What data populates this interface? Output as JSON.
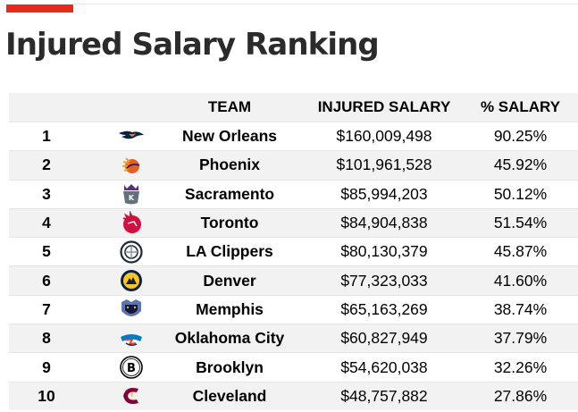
{
  "title": "Injured Salary Ranking",
  "colors": {
    "accent": "#e8291c",
    "stripe": "#f2f2f2"
  },
  "columns": {
    "rank": "",
    "logo": "",
    "team": "TEAM",
    "salary": "INJURED SALARY",
    "pct": "% SALARY"
  },
  "rows": [
    {
      "rank": "1",
      "team": "New Orleans",
      "salary": "$160,009,498",
      "pct": "90.25%",
      "logo": "pelicans-logo-icon"
    },
    {
      "rank": "2",
      "team": "Phoenix",
      "salary": "$101,961,528",
      "pct": "45.92%",
      "logo": "suns-logo-icon"
    },
    {
      "rank": "3",
      "team": "Sacramento",
      "salary": "$85,994,203",
      "pct": "50.12%",
      "logo": "kings-logo-icon"
    },
    {
      "rank": "4",
      "team": "Toronto",
      "salary": "$84,904,838",
      "pct": "51.54%",
      "logo": "raptors-logo-icon"
    },
    {
      "rank": "5",
      "team": "LA Clippers",
      "salary": "$80,130,379",
      "pct": "45.87%",
      "logo": "clippers-logo-icon"
    },
    {
      "rank": "6",
      "team": "Denver",
      "salary": "$77,323,033",
      "pct": "41.60%",
      "logo": "nuggets-logo-icon"
    },
    {
      "rank": "7",
      "team": "Memphis",
      "salary": "$65,163,269",
      "pct": "38.74%",
      "logo": "grizzlies-logo-icon"
    },
    {
      "rank": "8",
      "team": "Oklahoma City",
      "salary": "$60,827,949",
      "pct": "37.79%",
      "logo": "thunder-logo-icon"
    },
    {
      "rank": "9",
      "team": "Brooklyn",
      "salary": "$54,620,038",
      "pct": "32.26%",
      "logo": "nets-logo-icon"
    },
    {
      "rank": "10",
      "team": "Cleveland",
      "salary": "$48,757,882",
      "pct": "27.86%",
      "logo": "cavaliers-logo-icon"
    }
  ]
}
